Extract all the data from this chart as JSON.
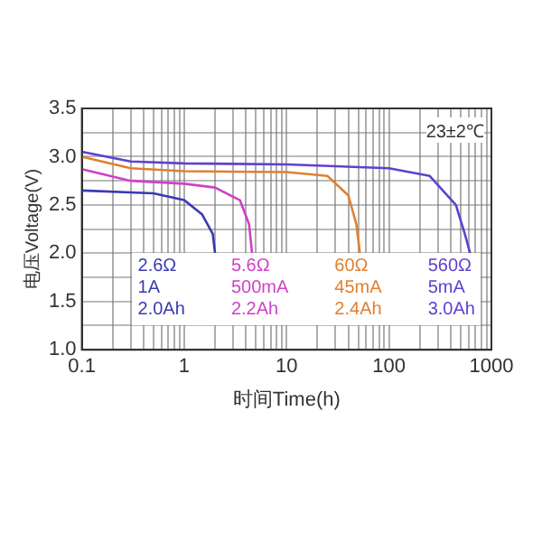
{
  "chart_data": {
    "type": "line",
    "xlabel": "时间Time(h)",
    "ylabel": "电压Voltage(V)",
    "annotations": [
      "23±2℃"
    ],
    "log": "x",
    "grid": true,
    "legend": "bottom",
    "marker": "none",
    "line_style": "solid",
    "xlim": [
      0.1,
      1000
    ],
    "xticks": [
      0.1,
      {
        "value": 0.2,
        "label": null
      },
      {
        "value": 0.3,
        "label": null
      },
      {
        "value": 0.4,
        "label": null
      },
      {
        "value": 0.5,
        "label": null
      },
      {
        "value": 0.6,
        "label": null
      },
      {
        "value": 0.7,
        "label": null
      },
      {
        "value": 0.8,
        "label": null
      },
      {
        "value": 0.9,
        "label": null
      },
      1,
      {
        "value": 2,
        "label": null
      },
      {
        "value": 3,
        "label": null
      },
      {
        "value": 4,
        "label": null
      },
      {
        "value": 5,
        "label": null
      },
      {
        "value": 6,
        "label": null
      },
      {
        "value": 7,
        "label": null
      },
      {
        "value": 8,
        "label": null
      },
      {
        "value": 9,
        "label": null
      },
      10,
      {
        "value": 20,
        "label": null
      },
      {
        "value": 30,
        "label": null
      },
      {
        "value": 40,
        "label": null
      },
      {
        "value": 50,
        "label": null
      },
      {
        "value": 60,
        "label": null
      },
      {
        "value": 70,
        "label": null
      },
      {
        "value": 80,
        "label": null
      },
      {
        "value": 90,
        "label": null
      },
      100,
      {
        "value": 200,
        "label": null
      },
      {
        "value": 300,
        "label": null
      },
      {
        "value": 400,
        "label": null
      },
      {
        "value": 500,
        "label": null
      },
      {
        "value": 600,
        "label": null
      },
      {
        "value": 700,
        "label": null
      },
      {
        "value": 800,
        "label": null
      },
      {
        "value": 900,
        "label": null
      },
      1000
    ],
    "ylim": [
      1.0,
      3.5
    ],
    "yticks": [
      {
        "value": 1.0,
        "label": "1.0"
      },
      {
        "value": 1.25,
        "label": null
      },
      {
        "value": 1.5,
        "label": "1.5"
      },
      {
        "value": 1.75,
        "label": null
      },
      {
        "value": 2.0,
        "label": "2.0"
      },
      {
        "value": 2.25,
        "label": null
      },
      {
        "value": 2.5,
        "label": "2.5"
      },
      {
        "value": 2.75,
        "label": null
      },
      {
        "value": 3.0,
        "label": "3.0"
      },
      {
        "value": 3.25,
        "label": null
      },
      {
        "value": 3.5,
        "label": "3.5"
      }
    ],
    "series": [
      {
        "name": "2.6Ω 1A 2.0Ah",
        "color": "#3a3ab0",
        "x": [
          0.1,
          0.5,
          1,
          1.5,
          1.9,
          2.0
        ],
        "values": [
          2.65,
          2.62,
          2.55,
          2.4,
          2.2,
          2.0
        ]
      },
      {
        "name": "5.6Ω 500mA 2.2Ah",
        "color": "#d040c8",
        "x": [
          0.1,
          0.3,
          1,
          2,
          3.5,
          4.3,
          4.6
        ],
        "values": [
          2.87,
          2.75,
          2.72,
          2.68,
          2.55,
          2.3,
          2.0
        ]
      },
      {
        "name": "60Ω 45mA 2.4Ah",
        "color": "#e08030",
        "x": [
          0.1,
          0.3,
          1,
          10,
          25,
          40,
          48,
          52
        ],
        "values": [
          3.0,
          2.88,
          2.85,
          2.84,
          2.8,
          2.6,
          2.3,
          2.0
        ]
      },
      {
        "name": "560Ω 5mA 3.0Ah",
        "color": "#6040d0",
        "x": [
          0.1,
          0.3,
          1,
          10,
          100,
          250,
          450,
          550,
          620
        ],
        "values": [
          3.05,
          2.95,
          2.93,
          2.92,
          2.88,
          2.8,
          2.5,
          2.2,
          2.0
        ]
      }
    ]
  }
}
